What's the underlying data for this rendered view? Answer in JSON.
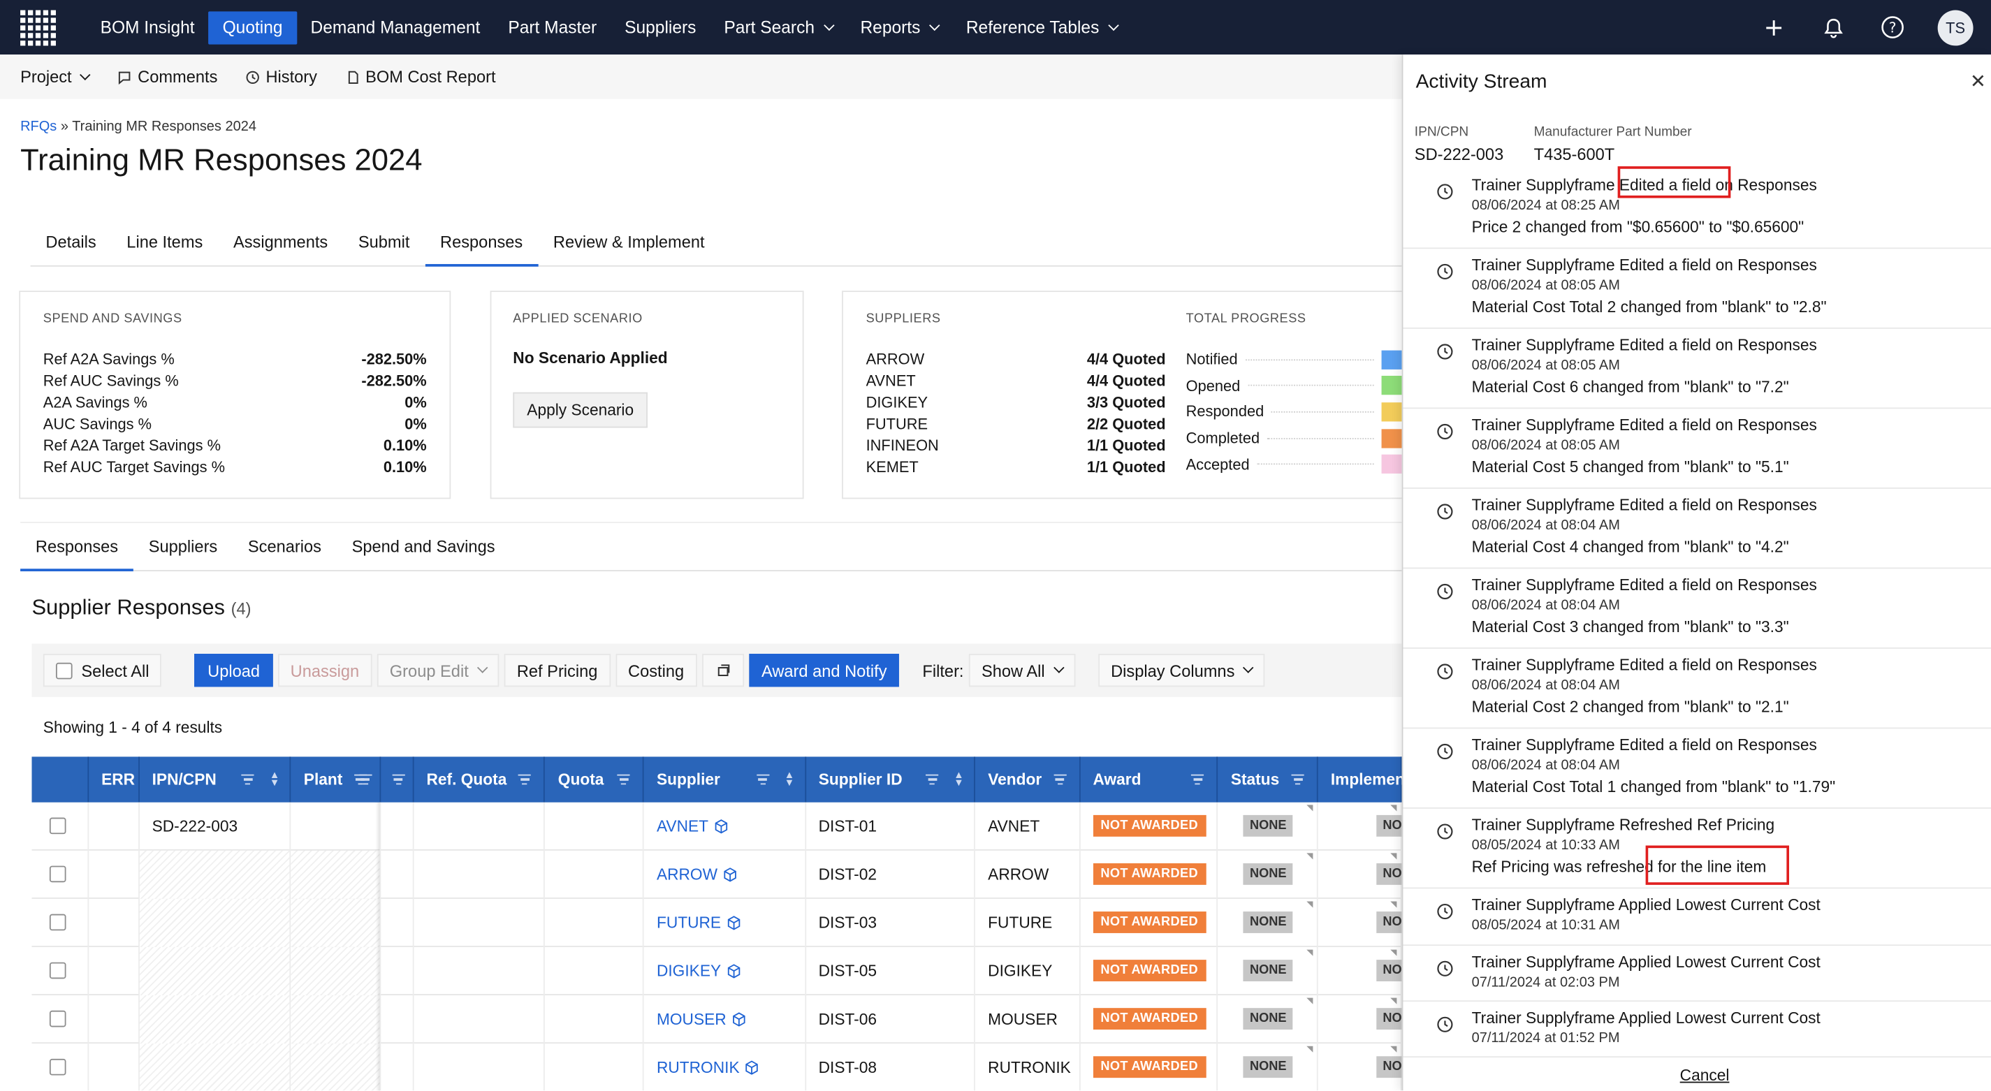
{
  "nav": {
    "items": [
      {
        "label": "BOM Insight",
        "active": false,
        "dropdown": false
      },
      {
        "label": "Quoting",
        "active": true,
        "dropdown": false
      },
      {
        "label": "Demand Management",
        "active": false,
        "dropdown": false
      },
      {
        "label": "Part Master",
        "active": false,
        "dropdown": false
      },
      {
        "label": "Suppliers",
        "active": false,
        "dropdown": false
      },
      {
        "label": "Part Search",
        "active": false,
        "dropdown": true
      },
      {
        "label": "Reports",
        "active": false,
        "dropdown": true
      },
      {
        "label": "Reference Tables",
        "active": false,
        "dropdown": true
      }
    ],
    "avatar": "TS",
    "icons": [
      "plus-icon",
      "bell-icon",
      "help-icon"
    ]
  },
  "subbar": {
    "project": "Project",
    "comments": "Comments",
    "history": "History",
    "bom_cost_report": "BOM Cost Report"
  },
  "breadcrumb": {
    "root": "RFQs",
    "sep": "»",
    "current": "Training MR Responses 2024"
  },
  "page_title": "Training MR Responses 2024",
  "main_tabs": [
    {
      "label": "Details",
      "active": false
    },
    {
      "label": "Line Items",
      "active": false
    },
    {
      "label": "Assignments",
      "active": false
    },
    {
      "label": "Submit",
      "active": false
    },
    {
      "label": "Responses",
      "active": true
    },
    {
      "label": "Review & Implement",
      "active": false
    }
  ],
  "spend": {
    "title": "SPEND AND SAVINGS",
    "rows": [
      {
        "label": "Ref A2A Savings %",
        "value": "-282.50%"
      },
      {
        "label": "Ref AUC Savings %",
        "value": "-282.50%"
      },
      {
        "label": "A2A Savings %",
        "value": "0%"
      },
      {
        "label": "AUC Savings %",
        "value": "0%"
      },
      {
        "label": "Ref A2A Target Savings %",
        "value": "0.10%"
      },
      {
        "label": "Ref AUC Target Savings %",
        "value": "0.10%"
      }
    ]
  },
  "scenario": {
    "title": "APPLIED SCENARIO",
    "value": "No Scenario Applied",
    "button": "Apply Scenario"
  },
  "suppliers_card": {
    "title": "SUPPLIERS",
    "rows": [
      {
        "name": "ARROW",
        "value": "4/4 Quoted"
      },
      {
        "name": "AVNET",
        "value": "4/4 Quoted"
      },
      {
        "name": "DIGIKEY",
        "value": "3/3 Quoted"
      },
      {
        "name": "FUTURE",
        "value": "2/2 Quoted"
      },
      {
        "name": "INFINEON",
        "value": "1/1 Quoted"
      },
      {
        "name": "KEMET",
        "value": "1/1 Quoted"
      }
    ]
  },
  "progress": {
    "title": "TOTAL PROGRESS",
    "rows": [
      {
        "label": "Notified",
        "color": "#5aa0f0"
      },
      {
        "label": "Opened",
        "color": "#8ddc78"
      },
      {
        "label": "Responded",
        "color": "#f2cc5a"
      },
      {
        "label": "Completed",
        "color": "#f0914a"
      },
      {
        "label": "Accepted",
        "color": "#f6c6e0"
      }
    ]
  },
  "sub_tabs": [
    {
      "label": "Responses",
      "active": true
    },
    {
      "label": "Suppliers",
      "active": false
    },
    {
      "label": "Scenarios",
      "active": false
    },
    {
      "label": "Spend and Savings",
      "active": false
    }
  ],
  "responses": {
    "title": "Supplier Responses",
    "count": "(4)",
    "toolbar": {
      "select_all": "Select All",
      "upload": "Upload",
      "unassign": "Unassign",
      "group_edit": "Group Edit",
      "ref_pricing": "Ref Pricing",
      "costing": "Costing",
      "award_notify": "Award and Notify",
      "filter_label": "Filter:",
      "filter_value": "Show All",
      "display_columns": "Display Columns"
    },
    "showing": "Showing 1 - 4 of 4 results",
    "columns": [
      "ERR",
      "IPN/CPN",
      "Plant",
      "Ref. Quota",
      "Quota",
      "Supplier",
      "Supplier ID",
      "Vendor",
      "Award",
      "Status",
      "Implemen"
    ],
    "rows": [
      {
        "ipn": "SD-222-003",
        "supplier": "AVNET",
        "supplier_id": "DIST-01",
        "vendor": "AVNET",
        "award": "NOT AWARDED",
        "status": "NONE",
        "impl": "NO"
      },
      {
        "ipn": "",
        "supplier": "ARROW",
        "supplier_id": "DIST-02",
        "vendor": "ARROW",
        "award": "NOT AWARDED",
        "status": "NONE",
        "impl": "NO"
      },
      {
        "ipn": "",
        "supplier": "FUTURE",
        "supplier_id": "DIST-03",
        "vendor": "FUTURE",
        "award": "NOT AWARDED",
        "status": "NONE",
        "impl": "NO"
      },
      {
        "ipn": "",
        "supplier": "DIGIKEY",
        "supplier_id": "DIST-05",
        "vendor": "DIGIKEY",
        "award": "NOT AWARDED",
        "status": "NONE",
        "impl": "NO"
      },
      {
        "ipn": "",
        "supplier": "MOUSER",
        "supplier_id": "DIST-06",
        "vendor": "MOUSER",
        "award": "NOT AWARDED",
        "status": "NONE",
        "impl": "NO"
      },
      {
        "ipn": "",
        "supplier": "RUTRONIK",
        "supplier_id": "DIST-08",
        "vendor": "RUTRONIK",
        "award": "NOT AWARDED",
        "status": "NONE",
        "impl": "NO"
      }
    ]
  },
  "activity": {
    "title": "Activity Stream",
    "ipn_label": "IPN/CPN",
    "ipn_value": "SD-222-003",
    "mpn_label": "Manufacturer Part Number",
    "mpn_value": "T435-600T",
    "cancel": "Cancel",
    "items": [
      {
        "l1": "Trainer Supplyframe Edited a field on Responses",
        "l2": "08/06/2024 at 08:25 AM",
        "l3": "Price 2 changed from \"$0.65600\" to \"$0.65600\""
      },
      {
        "l1": "Trainer Supplyframe Edited a field on Responses",
        "l2": "08/06/2024 at 08:05 AM",
        "l3": "Material Cost Total 2 changed from \"blank\" to \"2.8\""
      },
      {
        "l1": "Trainer Supplyframe Edited a field on Responses",
        "l2": "08/06/2024 at 08:05 AM",
        "l3": "Material Cost 6 changed from \"blank\" to \"7.2\""
      },
      {
        "l1": "Trainer Supplyframe Edited a field on Responses",
        "l2": "08/06/2024 at 08:05 AM",
        "l3": "Material Cost 5 changed from \"blank\" to \"5.1\""
      },
      {
        "l1": "Trainer Supplyframe Edited a field on Responses",
        "l2": "08/06/2024 at 08:04 AM",
        "l3": "Material Cost 4 changed from \"blank\" to \"4.2\""
      },
      {
        "l1": "Trainer Supplyframe Edited a field on Responses",
        "l2": "08/06/2024 at 08:04 AM",
        "l3": "Material Cost 3 changed from \"blank\" to \"3.3\""
      },
      {
        "l1": "Trainer Supplyframe Edited a field on Responses",
        "l2": "08/06/2024 at 08:04 AM",
        "l3": "Material Cost 2 changed from \"blank\" to \"2.1\""
      },
      {
        "l1": "Trainer Supplyframe Edited a field on Responses",
        "l2": "08/06/2024 at 08:04 AM",
        "l3": "Material Cost Total 1 changed from \"blank\" to \"1.79\""
      },
      {
        "l1": "Trainer Supplyframe Refreshed Ref Pricing",
        "l2": "08/05/2024 at 10:33 AM",
        "l3": "Ref Pricing was refreshed for the line item"
      },
      {
        "l1": "Trainer Supplyframe Applied Lowest Current Cost",
        "l2": "08/05/2024 at 10:31 AM",
        "l3": ""
      },
      {
        "l1": "Trainer Supplyframe Applied Lowest Current Cost",
        "l2": "07/11/2024 at 02:03 PM",
        "l3": ""
      },
      {
        "l1": "Trainer Supplyframe Applied Lowest Current Cost",
        "l2": "07/11/2024 at 01:52 PM",
        "l3": ""
      }
    ]
  }
}
